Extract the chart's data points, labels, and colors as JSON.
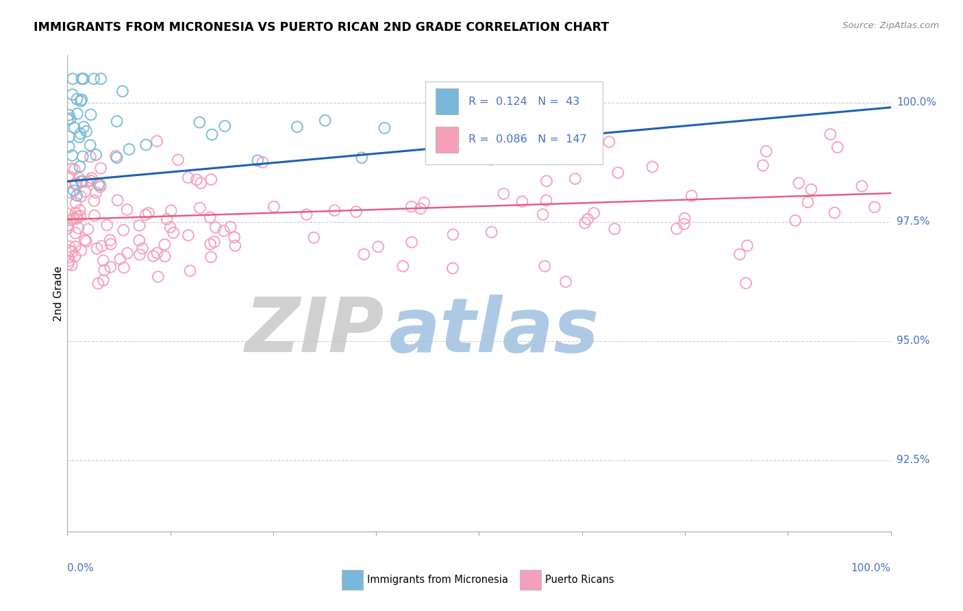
{
  "title": "IMMIGRANTS FROM MICRONESIA VS PUERTO RICAN 2ND GRADE CORRELATION CHART",
  "source": "Source: ZipAtlas.com",
  "ylabel": "2nd Grade",
  "ylabel_ticks": [
    "92.5%",
    "95.0%",
    "97.5%",
    "100.0%"
  ],
  "ylabel_tick_vals": [
    92.5,
    95.0,
    97.5,
    100.0
  ],
  "legend_label_blue": "Immigrants from Micronesia",
  "legend_label_pink": "Puerto Ricans",
  "R_blue": 0.124,
  "N_blue": 43,
  "R_pink": 0.086,
  "N_pink": 147,
  "blue_color": "#7ab8d9",
  "pink_color": "#f4a0b8",
  "trend_blue": "#2060b0",
  "trend_pink": "#e06080",
  "axis_color": "#aaaaaa",
  "tick_color": "#4472c4",
  "grid_color": "#cccccc",
  "watermark_zip_color": "#c8c8c8",
  "watermark_atlas_color": "#a0c0e0",
  "background": "#ffffff",
  "xmin": 0,
  "xmax": 100,
  "ymin": 91.0,
  "ymax": 101.0,
  "blue_trend_x": [
    0,
    100
  ],
  "blue_trend_y": [
    98.35,
    99.9
  ],
  "pink_trend_x": [
    0,
    100
  ],
  "pink_trend_y": [
    97.55,
    98.1
  ]
}
